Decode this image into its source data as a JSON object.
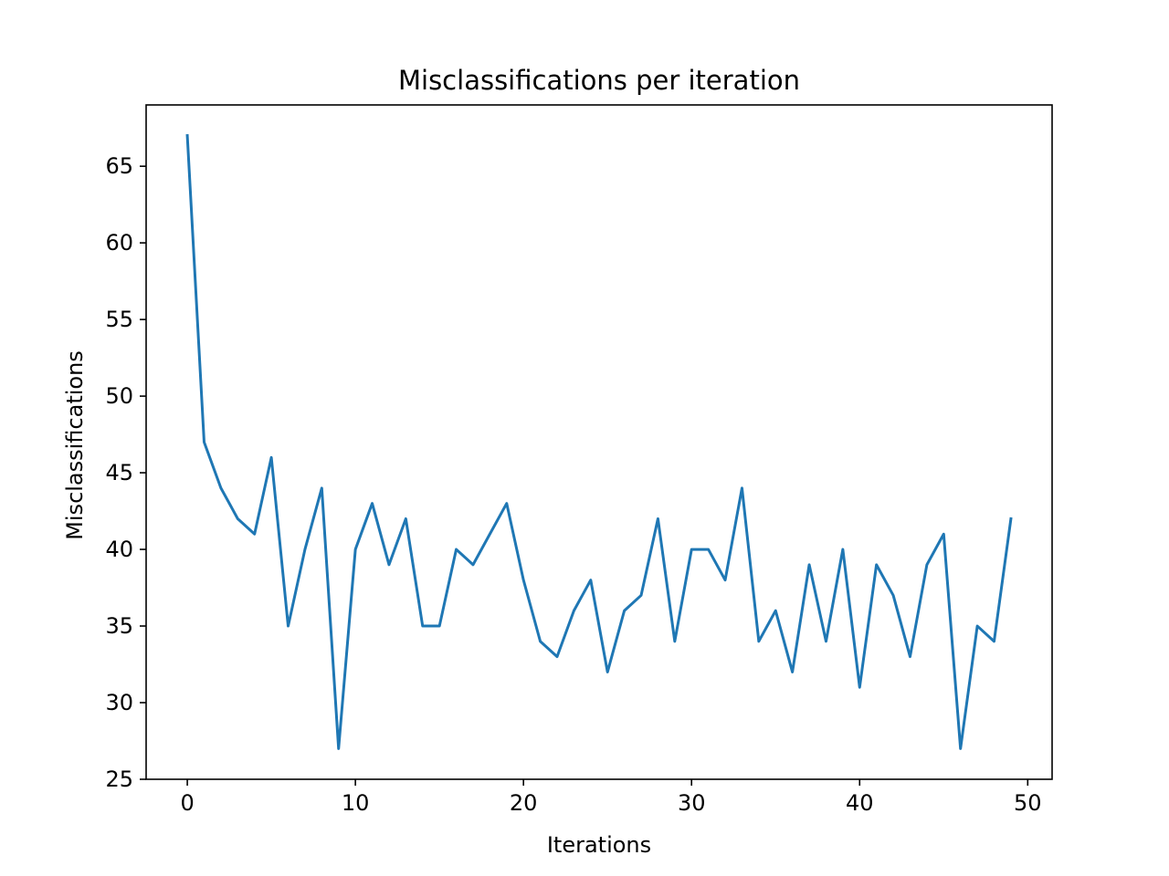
{
  "chart_data": {
    "type": "line",
    "title": "Misclassifications per iteration",
    "xlabel": "Iterations",
    "ylabel": "Misclassifications",
    "xlim": [
      -2.45,
      51.45
    ],
    "ylim": [
      25,
      69
    ],
    "xticks": [
      0,
      10,
      20,
      30,
      40,
      50
    ],
    "yticks": [
      25,
      30,
      35,
      40,
      45,
      50,
      55,
      60,
      65
    ],
    "x": [
      0,
      1,
      2,
      3,
      4,
      5,
      6,
      7,
      8,
      9,
      10,
      11,
      12,
      13,
      14,
      15,
      16,
      17,
      18,
      19,
      20,
      21,
      22,
      23,
      24,
      25,
      26,
      27,
      28,
      29,
      30,
      31,
      32,
      33,
      34,
      35,
      36,
      37,
      38,
      39,
      40,
      41,
      42,
      43,
      44,
      45,
      46,
      47,
      48,
      49
    ],
    "series": [
      {
        "values": [
          67,
          47,
          44,
          42,
          41,
          46,
          35,
          40,
          44,
          27,
          40,
          43,
          39,
          42,
          35,
          35,
          40,
          39,
          41,
          43,
          38,
          34,
          33,
          36,
          38,
          32,
          36,
          37,
          42,
          34,
          40,
          40,
          38,
          44,
          34,
          36,
          32,
          39,
          34,
          40,
          31,
          39,
          37,
          33,
          39,
          41,
          27,
          35,
          34,
          42
        ],
        "color": "#1f77b4"
      }
    ],
    "grid": false,
    "legend": "none"
  }
}
